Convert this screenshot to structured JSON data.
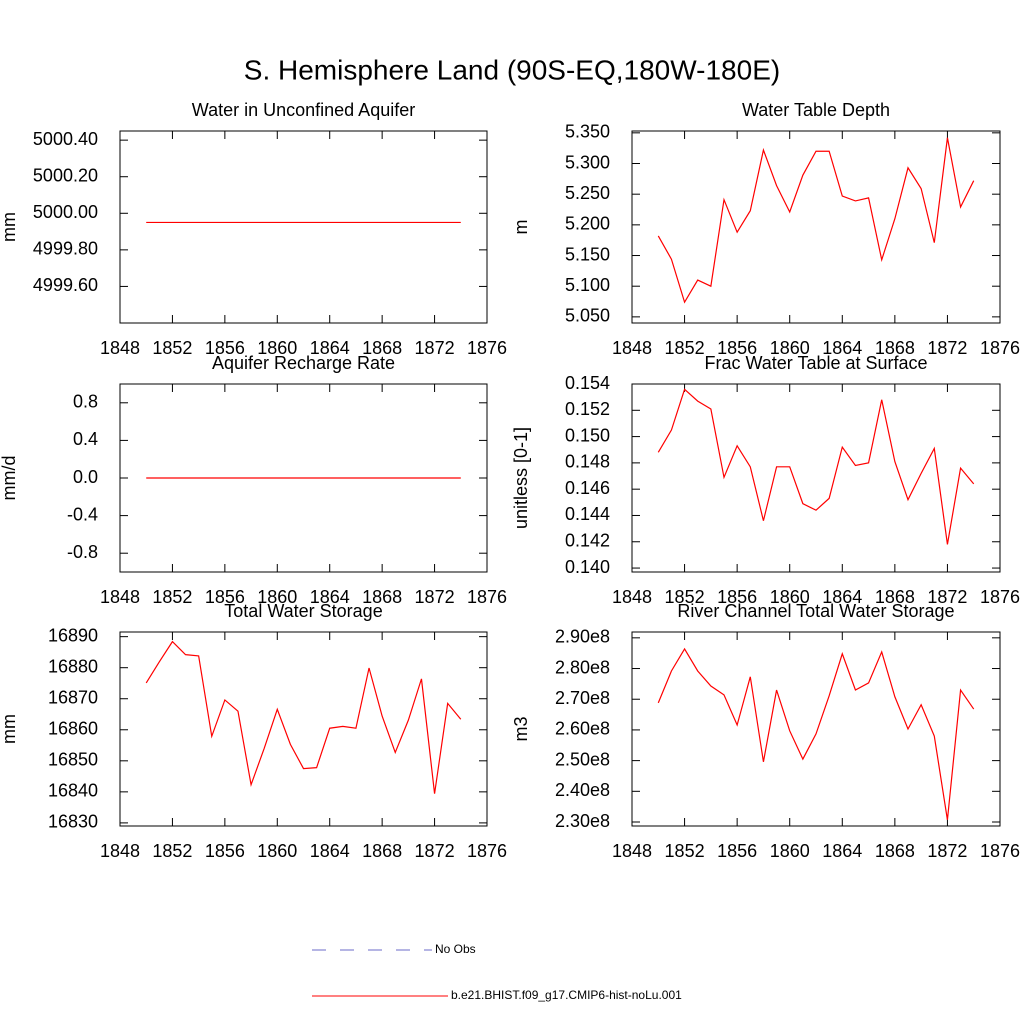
{
  "title": "S. Hemisphere Land (90S-EQ,180W-180E)",
  "legend": [
    {
      "name": "No Obs",
      "color": "#6b6bc8",
      "dash": true
    },
    {
      "name": "b.e21.BHIST.f09_g17.CMIP6-hist-noLu.001",
      "color": "#ff0000",
      "dash": false
    }
  ],
  "chart_data": [
    {
      "type": "line",
      "title": "Water in Unconfined Aquifer",
      "ylabel": "mm",
      "x": [
        1850,
        1851,
        1852,
        1853,
        1854,
        1855,
        1856,
        1857,
        1858,
        1859,
        1860,
        1861,
        1862,
        1863,
        1864,
        1865,
        1866,
        1867,
        1868,
        1869,
        1870,
        1871,
        1872,
        1873,
        1874
      ],
      "xlim": [
        1848,
        1876
      ],
      "xticks": [
        1848,
        1852,
        1856,
        1860,
        1864,
        1868,
        1872,
        1876
      ],
      "ylim": [
        4999.4,
        5000.45
      ],
      "yticks": [
        {
          "value": 4999.6,
          "label": "4999.60"
        },
        {
          "value": 4999.8,
          "label": "4999.80"
        },
        {
          "value": 5000.0,
          "label": "5000.00"
        },
        {
          "value": 5000.2,
          "label": "5000.20"
        },
        {
          "value": 5000.4,
          "label": "5000.40"
        }
      ],
      "series": [
        {
          "color": "#ff0000",
          "values": [
            4999.95,
            4999.95,
            4999.95,
            4999.95,
            4999.95,
            4999.95,
            4999.95,
            4999.95,
            4999.95,
            4999.95,
            4999.95,
            4999.95,
            4999.95,
            4999.95,
            4999.95,
            4999.95,
            4999.95,
            4999.95,
            4999.95,
            4999.95,
            4999.95,
            4999.95,
            4999.95,
            4999.95,
            4999.95
          ]
        }
      ]
    },
    {
      "type": "line",
      "title": "Water Table Depth",
      "ylabel": "m",
      "x": [
        1850,
        1851,
        1852,
        1853,
        1854,
        1855,
        1856,
        1857,
        1858,
        1859,
        1860,
        1861,
        1862,
        1863,
        1864,
        1865,
        1866,
        1867,
        1868,
        1869,
        1870,
        1871,
        1872,
        1873,
        1874
      ],
      "xlim": [
        1848,
        1876
      ],
      "xticks": [
        1848,
        1852,
        1856,
        1860,
        1864,
        1868,
        1872,
        1876
      ],
      "ylim": [
        5.04,
        5.353
      ],
      "yticks": [
        {
          "value": 5.05,
          "label": "5.050"
        },
        {
          "value": 5.1,
          "label": "5.100"
        },
        {
          "value": 5.15,
          "label": "5.150"
        },
        {
          "value": 5.2,
          "label": "5.200"
        },
        {
          "value": 5.25,
          "label": "5.250"
        },
        {
          "value": 5.3,
          "label": "5.300"
        },
        {
          "value": 5.35,
          "label": "5.350"
        }
      ],
      "series": [
        {
          "color": "#ff0000",
          "values": [
            5.182,
            5.144,
            5.074,
            5.11,
            5.1,
            5.241,
            5.188,
            5.223,
            5.322,
            5.264,
            5.221,
            5.281,
            5.32,
            5.32,
            5.247,
            5.239,
            5.244,
            5.143,
            5.21,
            5.293,
            5.259,
            5.171,
            5.342,
            5.229,
            5.272
          ]
        }
      ]
    },
    {
      "type": "line",
      "title": "Aquifer Recharge Rate",
      "ylabel": "mm/d",
      "x": [
        1850,
        1851,
        1852,
        1853,
        1854,
        1855,
        1856,
        1857,
        1858,
        1859,
        1860,
        1861,
        1862,
        1863,
        1864,
        1865,
        1866,
        1867,
        1868,
        1869,
        1870,
        1871,
        1872,
        1873,
        1874
      ],
      "xlim": [
        1848,
        1876
      ],
      "xticks": [
        1848,
        1852,
        1856,
        1860,
        1864,
        1868,
        1872,
        1876
      ],
      "ylim": [
        -1.0,
        1.0
      ],
      "yticks": [
        -0.8,
        -0.4,
        {
          "value": 0,
          "label": "0.0"
        },
        0.4,
        0.8
      ],
      "series": [
        {
          "color": "#ff0000",
          "values": [
            0,
            0,
            0,
            0,
            0,
            0,
            0,
            0,
            0,
            0,
            0,
            0,
            0,
            0,
            0,
            0,
            0,
            0,
            0,
            0,
            0,
            0,
            0,
            0,
            0
          ]
        }
      ]
    },
    {
      "type": "line",
      "title": "Frac Water Table at Surface",
      "ylabel": "unitless [0-1]",
      "x": [
        1850,
        1851,
        1852,
        1853,
        1854,
        1855,
        1856,
        1857,
        1858,
        1859,
        1860,
        1861,
        1862,
        1863,
        1864,
        1865,
        1866,
        1867,
        1868,
        1869,
        1870,
        1871,
        1872,
        1873,
        1874
      ],
      "xlim": [
        1848,
        1876
      ],
      "xticks": [
        1848,
        1852,
        1856,
        1860,
        1864,
        1868,
        1872,
        1876
      ],
      "ylim": [
        0.1397,
        0.154
      ],
      "yticks": [
        {
          "value": 0.14,
          "label": "0.140"
        },
        0.142,
        0.144,
        0.146,
        0.148,
        {
          "value": 0.15,
          "label": "0.150"
        },
        0.152,
        0.154
      ],
      "series": [
        {
          "color": "#ff0000",
          "values": [
            0.1488,
            0.1505,
            0.1536,
            0.1527,
            0.1521,
            0.1469,
            0.1493,
            0.1477,
            0.1436,
            0.1477,
            0.1477,
            0.1449,
            0.1444,
            0.1453,
            0.1492,
            0.1478,
            0.148,
            0.1528,
            0.1481,
            0.1452,
            0.1472,
            0.1491,
            0.1418,
            0.1476,
            0.1464
          ]
        }
      ]
    },
    {
      "type": "line",
      "title": "Total Water Storage",
      "ylabel": "mm",
      "x": [
        1850,
        1851,
        1852,
        1853,
        1854,
        1855,
        1856,
        1857,
        1858,
        1859,
        1860,
        1861,
        1862,
        1863,
        1864,
        1865,
        1866,
        1867,
        1868,
        1869,
        1870,
        1871,
        1872,
        1873,
        1874
      ],
      "xlim": [
        1848,
        1876
      ],
      "xticks": [
        1848,
        1852,
        1856,
        1860,
        1864,
        1868,
        1872,
        1876
      ],
      "ylim": [
        16829,
        16891.5
      ],
      "yticks": [
        16830,
        16840,
        16850,
        16860,
        16870,
        16880,
        16890
      ],
      "series": [
        {
          "color": "#ff0000",
          "values": [
            16875.1,
            16881.9,
            16888.4,
            16884.2,
            16883.8,
            16857.9,
            16869.6,
            16866.0,
            16842.3,
            16854.0,
            16866.6,
            16855.3,
            16847.5,
            16847.8,
            16860.5,
            16861.1,
            16860.5,
            16879.9,
            16864.4,
            16852.7,
            16863.1,
            16876.4,
            16839.4,
            16868.5,
            16863.4
          ]
        }
      ]
    },
    {
      "type": "line",
      "title": "River Channel Total Water Storage",
      "ylabel": "m3",
      "x": [
        1850,
        1851,
        1852,
        1853,
        1854,
        1855,
        1856,
        1857,
        1858,
        1859,
        1860,
        1861,
        1862,
        1863,
        1864,
        1865,
        1866,
        1867,
        1868,
        1869,
        1870,
        1871,
        1872,
        1873,
        1874
      ],
      "xlim": [
        1848,
        1876
      ],
      "xticks": [
        1848,
        1852,
        1856,
        1860,
        1864,
        1868,
        1872,
        1876
      ],
      "ylim": [
        228700000,
        291900000
      ],
      "yticks": [
        {
          "value": 230000000,
          "label": "2.30e8"
        },
        {
          "value": 240000000,
          "label": "2.40e8"
        },
        {
          "value": 250000000,
          "label": "2.50e8"
        },
        {
          "value": 260000000,
          "label": "2.60e8"
        },
        {
          "value": 270000000,
          "label": "2.70e8"
        },
        {
          "value": 280000000,
          "label": "2.80e8"
        },
        {
          "value": 290000000,
          "label": "2.90e8"
        }
      ],
      "series": [
        {
          "color": "#ff0000",
          "values": [
            268800000,
            279200000,
            286400000,
            279200000,
            274300000,
            271400000,
            261600000,
            277300000,
            249600000,
            273000000,
            259700000,
            250500000,
            258700000,
            271100000,
            284800000,
            273000000,
            275300000,
            285400000,
            270800000,
            260300000,
            268200000,
            258000000,
            230700000,
            273000000,
            266800000
          ]
        }
      ]
    }
  ]
}
